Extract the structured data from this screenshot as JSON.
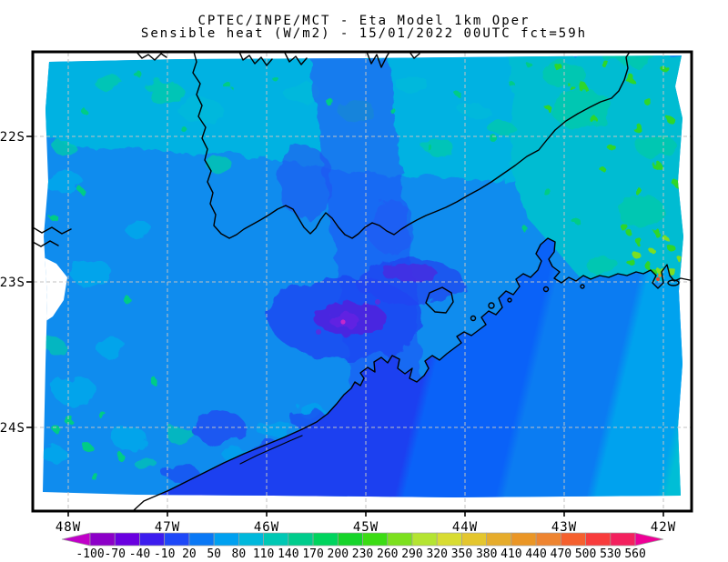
{
  "title": {
    "line1": "CPTEC/INPE/MCT -  Eta Model 1km Oper",
    "line2": "Sensible heat (W/m2) - 15/01/2022 00UTC fct=59h"
  },
  "axes": {
    "lat_labels": [
      "22S",
      "23S",
      "24S"
    ],
    "lon_labels": [
      "48W",
      "47W",
      "46W",
      "45W",
      "44W",
      "43W",
      "42W"
    ]
  },
  "colorbar": {
    "levels": [
      -100,
      -70,
      -40,
      -10,
      20,
      50,
      80,
      110,
      140,
      170,
      200,
      230,
      260,
      290,
      320,
      350,
      380,
      410,
      440,
      470,
      500,
      530,
      560
    ],
    "segment_colors": [
      "#8c00c8",
      "#6a00e0",
      "#3c1cee",
      "#1e48f8",
      "#0a78f5",
      "#00a0f0",
      "#00b8dc",
      "#00c8b4",
      "#00cc8c",
      "#00d45e",
      "#16d42a",
      "#3cdc14",
      "#7ce01e",
      "#b4e432",
      "#d8dc32",
      "#e4c62e",
      "#e6ac2c",
      "#ea9626",
      "#ee8430",
      "#f5602e",
      "#f83c3c",
      "#f3215e"
    ],
    "underflow_color": "#c000c8",
    "overflow_color": "#ee0096",
    "units": "W/m2"
  },
  "map_colors": {
    "ocean_deep_blue": "#1c40f0",
    "ocean_mid_blue": "#0a62f8",
    "ocean_light_blue": "#0b7cf2",
    "ocean_sky_blue": "#00a2ee",
    "land_cyan": "#00b2e2",
    "land_teal": "#00c8ae",
    "land_green": "#2fd62a",
    "urban_purple": "#4a28e0",
    "urban_magenta": "#c428cc",
    "grid_gray": "#c2c2c2",
    "line_black": "#000000"
  }
}
